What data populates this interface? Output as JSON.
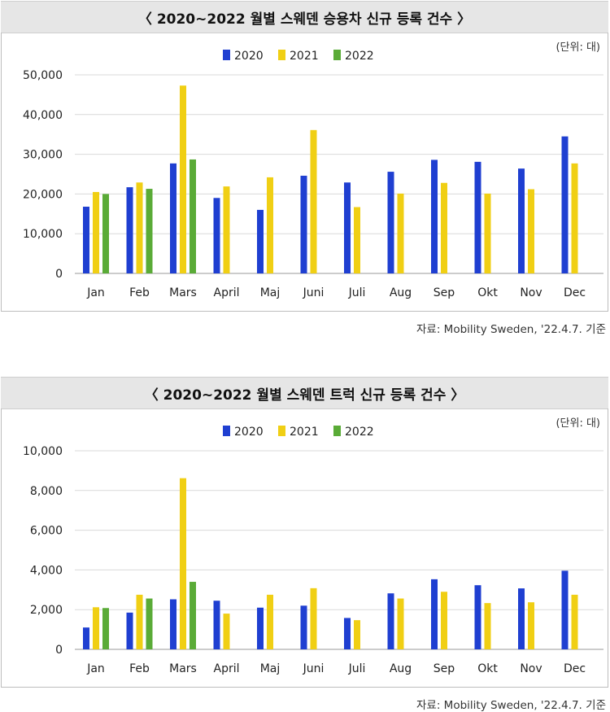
{
  "chart_data": [
    {
      "type": "bar",
      "title": "〈 2020~2022 월별 스웨덴 승용차 신규 등록 건수 〉",
      "unit": "(단위: 대)",
      "source": "자료: Mobility Sweden, '22.4.7. 기준",
      "categories": [
        "Jan",
        "Feb",
        "Mars",
        "April",
        "Maj",
        "Juni",
        "Juli",
        "Aug",
        "Sep",
        "Okt",
        "Nov",
        "Dec"
      ],
      "ylim": [
        0,
        50000
      ],
      "yticks": [
        0,
        10000,
        20000,
        30000,
        40000,
        50000
      ],
      "ytick_labels": [
        "0",
        "10,000",
        "20,000",
        "30,000",
        "40,000",
        "50,000"
      ],
      "grid": true,
      "legend": "top-center",
      "series": [
        {
          "name": "2020",
          "color": "#1f3fd1",
          "values": [
            16800,
            21700,
            27700,
            19000,
            16000,
            24600,
            22900,
            25600,
            28600,
            28100,
            26400,
            34500
          ]
        },
        {
          "name": "2021",
          "color": "#f0cf14",
          "values": [
            20500,
            22900,
            47300,
            21900,
            24200,
            36100,
            16700,
            20100,
            22800,
            20100,
            21200,
            27700
          ]
        },
        {
          "name": "2022",
          "color": "#5aab37",
          "values": [
            20000,
            21300,
            28700,
            null,
            null,
            null,
            null,
            null,
            null,
            null,
            null,
            null
          ]
        }
      ]
    },
    {
      "type": "bar",
      "title": "〈 2020~2022 월별 스웨덴 트럭 신규 등록 건수 〉",
      "unit": "(단위: 대)",
      "source": "자료: Mobility Sweden, '22.4.7. 기준",
      "categories": [
        "Jan",
        "Feb",
        "Mars",
        "April",
        "Maj",
        "Juni",
        "Juli",
        "Aug",
        "Sep",
        "Okt",
        "Nov",
        "Dec"
      ],
      "ylim": [
        0,
        10000
      ],
      "yticks": [
        0,
        2000,
        4000,
        6000,
        8000,
        10000
      ],
      "ytick_labels": [
        "0",
        "2,000",
        "4,000",
        "6,000",
        "8,000",
        "10,000"
      ],
      "grid": true,
      "legend": "top-center",
      "series": [
        {
          "name": "2020",
          "color": "#1f3fd1",
          "values": [
            1100,
            1850,
            2520,
            2450,
            2100,
            2200,
            1580,
            2820,
            3530,
            3230,
            3070,
            3960
          ]
        },
        {
          "name": "2021",
          "color": "#f0cf14",
          "values": [
            2120,
            2750,
            8620,
            1800,
            2750,
            3080,
            1470,
            2560,
            2900,
            2330,
            2370,
            2750
          ]
        },
        {
          "name": "2022",
          "color": "#5aab37",
          "values": [
            2080,
            2560,
            3400,
            null,
            null,
            null,
            null,
            null,
            null,
            null,
            null,
            null
          ]
        }
      ]
    }
  ]
}
